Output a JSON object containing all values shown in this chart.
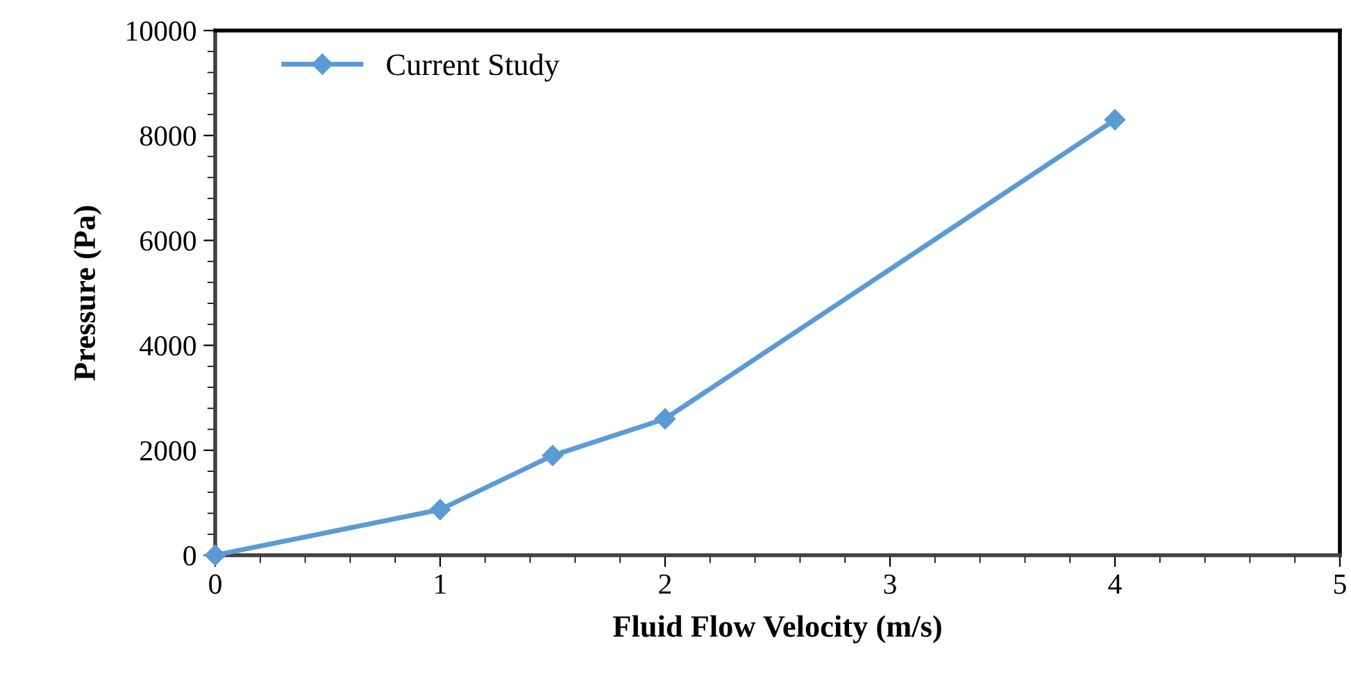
{
  "chart_data": {
    "type": "line",
    "xlabel": "Fluid Flow Velocity (m/s)",
    "ylabel": "Pressure (Pa)",
    "x": [
      0,
      1,
      1.5,
      2,
      4
    ],
    "series": [
      {
        "name": "Current Study",
        "color": "#5b9bd5",
        "values": [
          0,
          870,
          1900,
          2600,
          8300
        ]
      }
    ],
    "xlim": [
      0,
      5
    ],
    "xticks": [
      0,
      1,
      2,
      3,
      4,
      5
    ],
    "ylim": [
      0,
      10000
    ],
    "yticks": [
      0,
      2000,
      4000,
      6000,
      8000,
      10000
    ],
    "grid": false,
    "legend": "top left",
    "marker": "diamond",
    "line_style": "solid"
  }
}
